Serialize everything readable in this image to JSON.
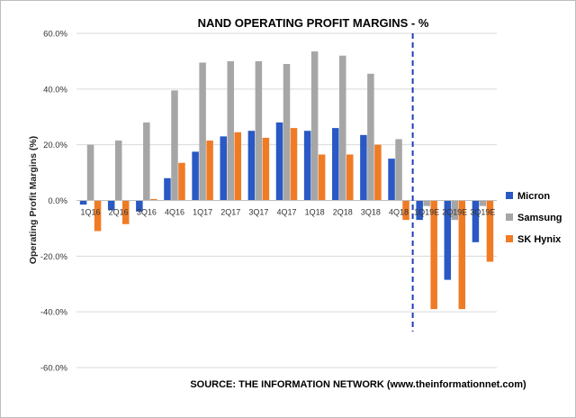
{
  "chart_data": {
    "type": "bar",
    "title": "NAND OPERATING PROFIT MARGINS - %",
    "ylabel": "Operating Profit Margins (%)",
    "xlabel": "",
    "ylim": [
      -60,
      60
    ],
    "yticks": [
      "60.0%",
      "40.0%",
      "20.0%",
      "0.0%",
      "-20.0%",
      "-40.0%",
      "-60.0%"
    ],
    "ytick_values": [
      60,
      40,
      20,
      0,
      -20,
      -40,
      -60
    ],
    "categories": [
      "1Q16",
      "2Q16",
      "3Q16",
      "4Q16",
      "1Q17",
      "2Q17",
      "3Q17",
      "4Q17",
      "1Q18",
      "2Q18",
      "3Q18",
      "4Q18",
      "1Q19E",
      "2Q19E",
      "3Q19E"
    ],
    "series": [
      {
        "name": "Micron",
        "color": "#2a58c4",
        "values": [
          -1.5,
          -3.5,
          -4,
          8,
          17.5,
          23,
          25,
          28,
          25,
          26,
          23.5,
          15,
          -7,
          -28.5,
          -15
        ]
      },
      {
        "name": "Samsung",
        "color": "#a6a6a6",
        "values": [
          20,
          21.5,
          28,
          39.5,
          49.5,
          50,
          50,
          49,
          53.5,
          52,
          45.5,
          22,
          -2,
          -7,
          -2
        ]
      },
      {
        "name": "SK Hynix",
        "color": "#f07b25",
        "values": [
          -11,
          -8.5,
          0.5,
          13.5,
          21.5,
          24.5,
          22.5,
          26,
          16.5,
          16.5,
          20,
          -7,
          -39,
          -39,
          -22
        ]
      }
    ],
    "grid": true,
    "legend_position": "right",
    "divider_after_category": "4Q18",
    "divider_color": "#1d3fb3",
    "source": "SOURCE: THE INFORMATION NETWORK (www.theinformationnet.com)"
  }
}
